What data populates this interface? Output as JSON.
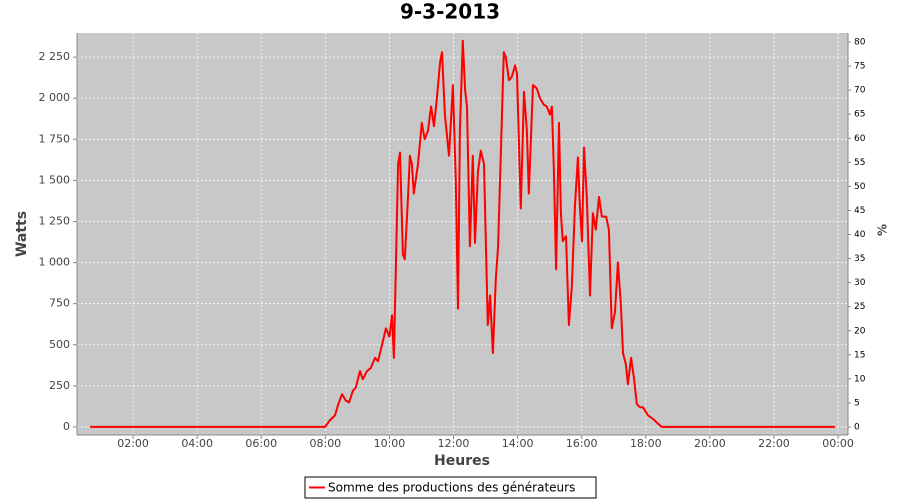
{
  "chart_data": {
    "type": "line",
    "title": "9-3-2013",
    "xlabel": "Heures",
    "ylabel": "Watts",
    "y2label": "%",
    "xlim": [
      0.25,
      24.31
    ],
    "xticks": [
      {
        "value": 2,
        "label": "02:00"
      },
      {
        "value": 4,
        "label": "04:00"
      },
      {
        "value": 6,
        "label": "06:00"
      },
      {
        "value": 8,
        "label": "08:00"
      },
      {
        "value": 10,
        "label": "10:00"
      },
      {
        "value": 12,
        "label": "12:00"
      },
      {
        "value": 14,
        "label": "14:00"
      },
      {
        "value": 16,
        "label": "16:00"
      },
      {
        "value": 18,
        "label": "18:00"
      },
      {
        "value": 20,
        "label": "20:00"
      },
      {
        "value": 22,
        "label": "22:00"
      },
      {
        "value": 24,
        "label": "00:00"
      }
    ],
    "ylim": [
      -49,
      2397
    ],
    "yticks": [
      0,
      250,
      500,
      750,
      {
        "value": 1000,
        "label": "1 000"
      },
      {
        "value": 1250,
        "label": "1 250"
      },
      {
        "value": 1500,
        "label": "1 500"
      },
      {
        "value": 1750,
        "label": "1 750"
      },
      {
        "value": 2000,
        "label": "2 000"
      },
      {
        "value": 2250,
        "label": "2 250"
      }
    ],
    "y2lim": [
      -1.66,
      81.87
    ],
    "y2ticks": [
      0,
      5,
      10,
      15,
      20,
      25,
      30,
      35,
      40,
      45,
      50,
      55,
      60,
      65,
      70,
      75,
      80
    ],
    "grid": true,
    "legend": "bottom",
    "x": [
      0.66,
      7.99,
      8.14,
      8.3,
      8.39,
      8.52,
      8.64,
      8.74,
      8.86,
      8.95,
      9.08,
      9.17,
      9.3,
      9.42,
      9.55,
      9.64,
      9.77,
      9.89,
      10.0,
      10.08,
      10.14,
      10.27,
      10.33,
      10.42,
      10.48,
      10.58,
      10.64,
      10.7,
      10.76,
      10.89,
      11.01,
      11.1,
      11.2,
      11.3,
      11.39,
      11.48,
      11.58,
      11.64,
      11.73,
      11.86,
      11.98,
      12.07,
      12.14,
      12.2,
      12.29,
      12.36,
      12.42,
      12.51,
      12.6,
      12.67,
      12.76,
      12.85,
      12.95,
      13.07,
      13.14,
      13.23,
      13.32,
      13.39,
      13.48,
      13.57,
      13.63,
      13.73,
      13.82,
      13.92,
      13.98,
      14.1,
      14.2,
      14.29,
      14.35,
      14.48,
      14.6,
      14.7,
      14.82,
      14.91,
      15.01,
      15.07,
      15.13,
      15.2,
      15.29,
      15.35,
      15.41,
      15.51,
      15.6,
      15.69,
      15.79,
      15.88,
      15.94,
      16.01,
      16.07,
      16.16,
      16.26,
      16.35,
      16.44,
      16.54,
      16.63,
      16.76,
      16.85,
      16.94,
      17.04,
      17.13,
      17.22,
      17.29,
      17.38,
      17.44,
      17.54,
      17.63,
      17.72,
      17.82,
      17.91,
      18.07,
      18.22,
      18.38,
      18.5,
      23.9
    ],
    "series": [
      {
        "name": "Somme des productions des  générateurs",
        "color": "#ff0000",
        "values": [
          0,
          0,
          40,
          70,
          130,
          200,
          160,
          150,
          220,
          240,
          340,
          290,
          340,
          360,
          420,
          400,
          500,
          600,
          550,
          680,
          420,
          1600,
          1670,
          1050,
          1020,
          1400,
          1650,
          1600,
          1420,
          1600,
          1850,
          1750,
          1800,
          1950,
          1830,
          2000,
          2220,
          2280,
          1900,
          1650,
          2080,
          1500,
          720,
          1800,
          2350,
          2050,
          1950,
          1100,
          1650,
          1120,
          1550,
          1680,
          1600,
          620,
          800,
          450,
          900,
          1100,
          1700,
          2280,
          2250,
          2110,
          2130,
          2200,
          2150,
          1330,
          2040,
          1800,
          1420,
          2080,
          2060,
          2000,
          1960,
          1950,
          1900,
          1950,
          1580,
          960,
          1850,
          1300,
          1130,
          1160,
          620,
          850,
          1350,
          1640,
          1350,
          1130,
          1700,
          1400,
          800,
          1300,
          1200,
          1400,
          1280,
          1280,
          1200,
          600,
          700,
          1000,
          750,
          450,
          380,
          260,
          420,
          300,
          140,
          120,
          120,
          70,
          50,
          20,
          0,
          0
        ]
      }
    ]
  }
}
